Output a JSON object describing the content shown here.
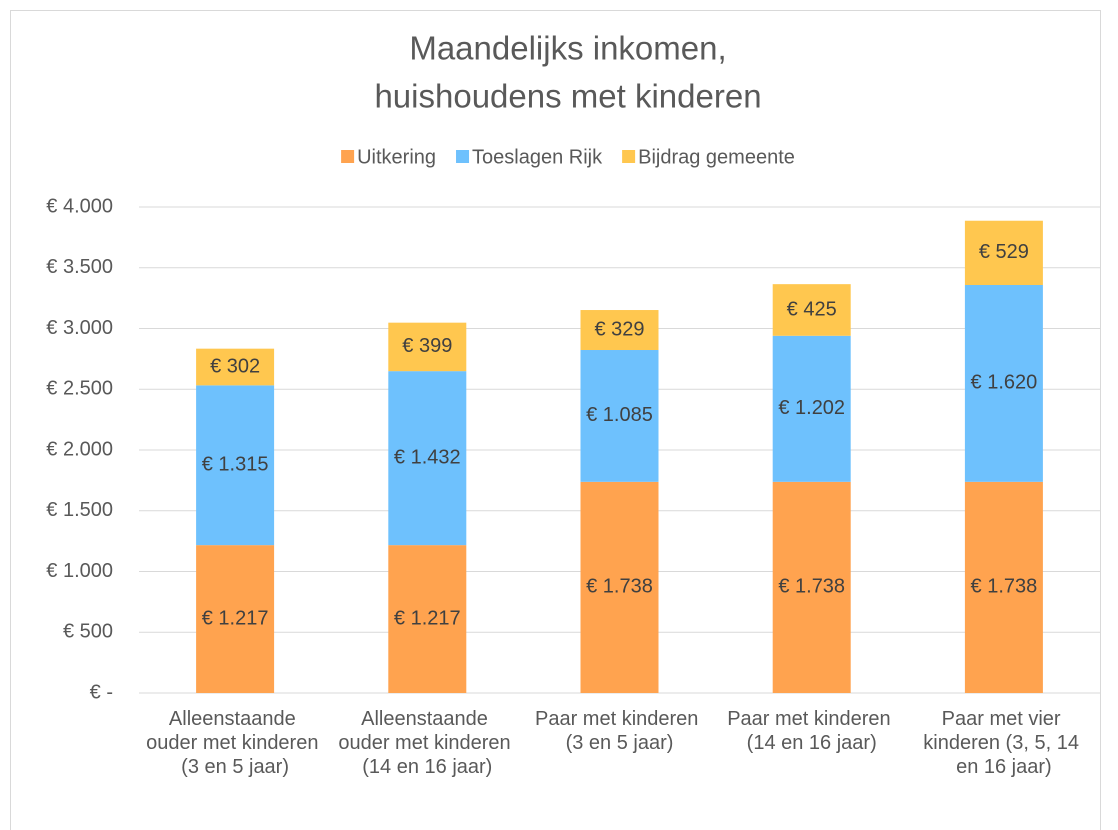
{
  "chart_data": {
    "type": "stacked_bar",
    "title": "Maandelijks inkomen,",
    "subtitle": "huishoudens met kinderen",
    "categories": [
      "Alleenstaande ouder met kinderen (3 en 5 jaar)",
      "Alleenstaande ouder met kinderen (14 en 16 jaar)",
      "Paar met kinderen (3 en 5 jaar)",
      "Paar met kinderen (14 en 16 jaar)",
      "Paar met vier kinderen (3, 5, 14 en 16 jaar)"
    ],
    "series": [
      {
        "name": "Uitkering",
        "color": "#ffa34f",
        "values": [
          1217,
          1217,
          1738,
          1738,
          1738
        ],
        "value_labels": [
          "€ 1.217",
          "€ 1.217",
          "€ 1.738",
          "€ 1.738",
          "€ 1.738"
        ]
      },
      {
        "name": "Toeslagen Rijk",
        "color": "#6ec1fd",
        "values": [
          1315,
          1432,
          1085,
          1202,
          1620
        ],
        "value_labels": [
          "€ 1.315",
          "€ 1.432",
          "€ 1.085",
          "€ 1.202",
          "€ 1.620"
        ]
      },
      {
        "name": "Bijdrag gemeente",
        "color": "#ffc74f",
        "values": [
          302,
          399,
          329,
          425,
          529
        ],
        "value_labels": [
          "€ 302",
          "€ 399",
          "€ 329",
          "€ 425",
          "€ 529"
        ]
      }
    ],
    "ylim": [
      0,
      4000
    ],
    "yticks": [
      {
        "value": 0,
        "label": "€ -"
      },
      {
        "value": 500,
        "label": "€ 500"
      },
      {
        "value": 1000,
        "label": "€ 1.000"
      },
      {
        "value": 1500,
        "label": "€ 1.500"
      },
      {
        "value": 2000,
        "label": "€ 2.000"
      },
      {
        "value": 2500,
        "label": "€ 2.500"
      },
      {
        "value": 3000,
        "label": "€ 3.000"
      },
      {
        "value": 3500,
        "label": "€ 3.500"
      },
      {
        "value": 4000,
        "label": "€ 4.000"
      }
    ],
    "grid": true,
    "legend": "top"
  }
}
